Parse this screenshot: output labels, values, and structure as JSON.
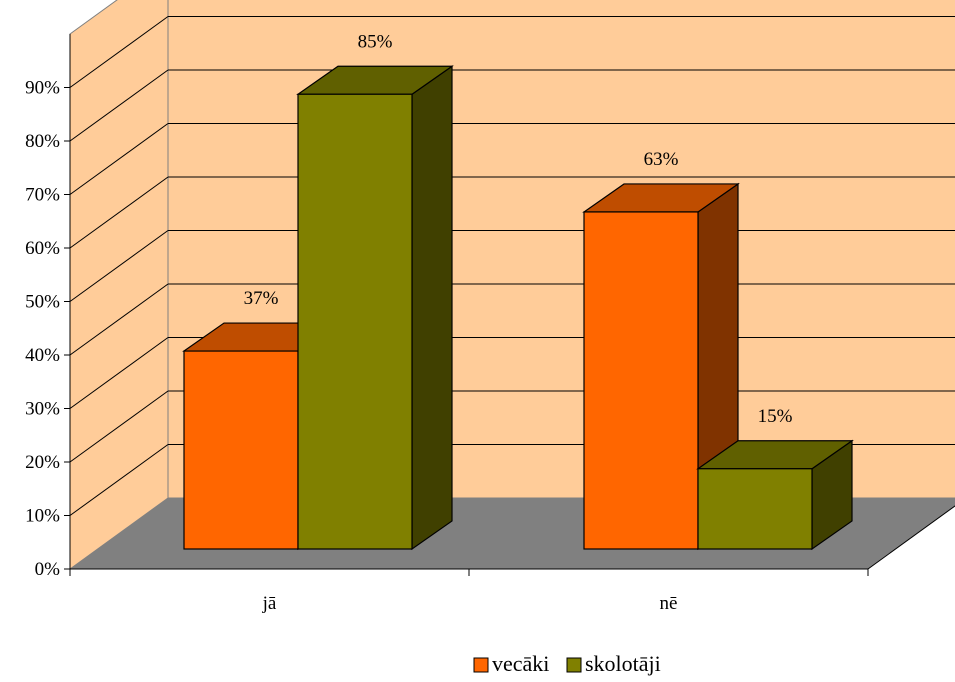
{
  "chart_data": {
    "type": "bar",
    "categories": [
      "jā",
      "nē"
    ],
    "series": [
      {
        "name": "vecāki",
        "values": [
          37,
          63
        ],
        "labels": [
          "37%",
          "63%"
        ]
      },
      {
        "name": "skolotāji",
        "values": [
          85,
          15
        ],
        "labels": [
          "85%",
          "15%"
        ]
      }
    ],
    "yticks": [
      "0%",
      "10%",
      "20%",
      "30%",
      "40%",
      "50%",
      "60%",
      "70%",
      "80%",
      "90%"
    ],
    "ylim": [
      0,
      100
    ],
    "grid": true,
    "legend_position": "bottom-right",
    "colors": {
      "wall": "#ffcc99",
      "floor": "#808080",
      "series": [
        "#ff6600",
        "#808000"
      ]
    }
  }
}
